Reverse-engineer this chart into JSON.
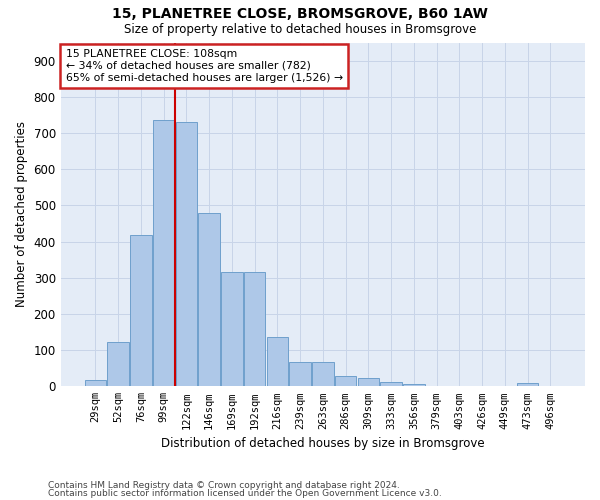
{
  "title1": "15, PLANETREE CLOSE, BROMSGROVE, B60 1AW",
  "title2": "Size of property relative to detached houses in Bromsgrove",
  "xlabel": "Distribution of detached houses by size in Bromsgrove",
  "ylabel": "Number of detached properties",
  "categories": [
    "29sqm",
    "52sqm",
    "76sqm",
    "99sqm",
    "122sqm",
    "146sqm",
    "169sqm",
    "192sqm",
    "216sqm",
    "239sqm",
    "263sqm",
    "286sqm",
    "309sqm",
    "333sqm",
    "356sqm",
    "379sqm",
    "403sqm",
    "426sqm",
    "449sqm",
    "473sqm",
    "496sqm"
  ],
  "values": [
    18,
    122,
    418,
    735,
    730,
    480,
    315,
    315,
    135,
    68,
    68,
    28,
    22,
    12,
    5,
    0,
    0,
    0,
    0,
    8,
    0
  ],
  "bar_color": "#aec8e8",
  "bar_edge_color": "#6fa0cc",
  "vline_color": "#cc0000",
  "annotation_line1": "15 PLANETREE CLOSE: 108sqm",
  "annotation_line2": "← 34% of detached houses are smaller (782)",
  "annotation_line3": "65% of semi-detached houses are larger (1,526) →",
  "annotation_box_color": "white",
  "annotation_box_edge_color": "#cc2222",
  "ylim": [
    0,
    950
  ],
  "yticks": [
    0,
    100,
    200,
    300,
    400,
    500,
    600,
    700,
    800,
    900
  ],
  "grid_color": "#c8d4e8",
  "bg_color": "#e4ecf7",
  "footer1": "Contains HM Land Registry data © Crown copyright and database right 2024.",
  "footer2": "Contains public sector information licensed under the Open Government Licence v3.0."
}
